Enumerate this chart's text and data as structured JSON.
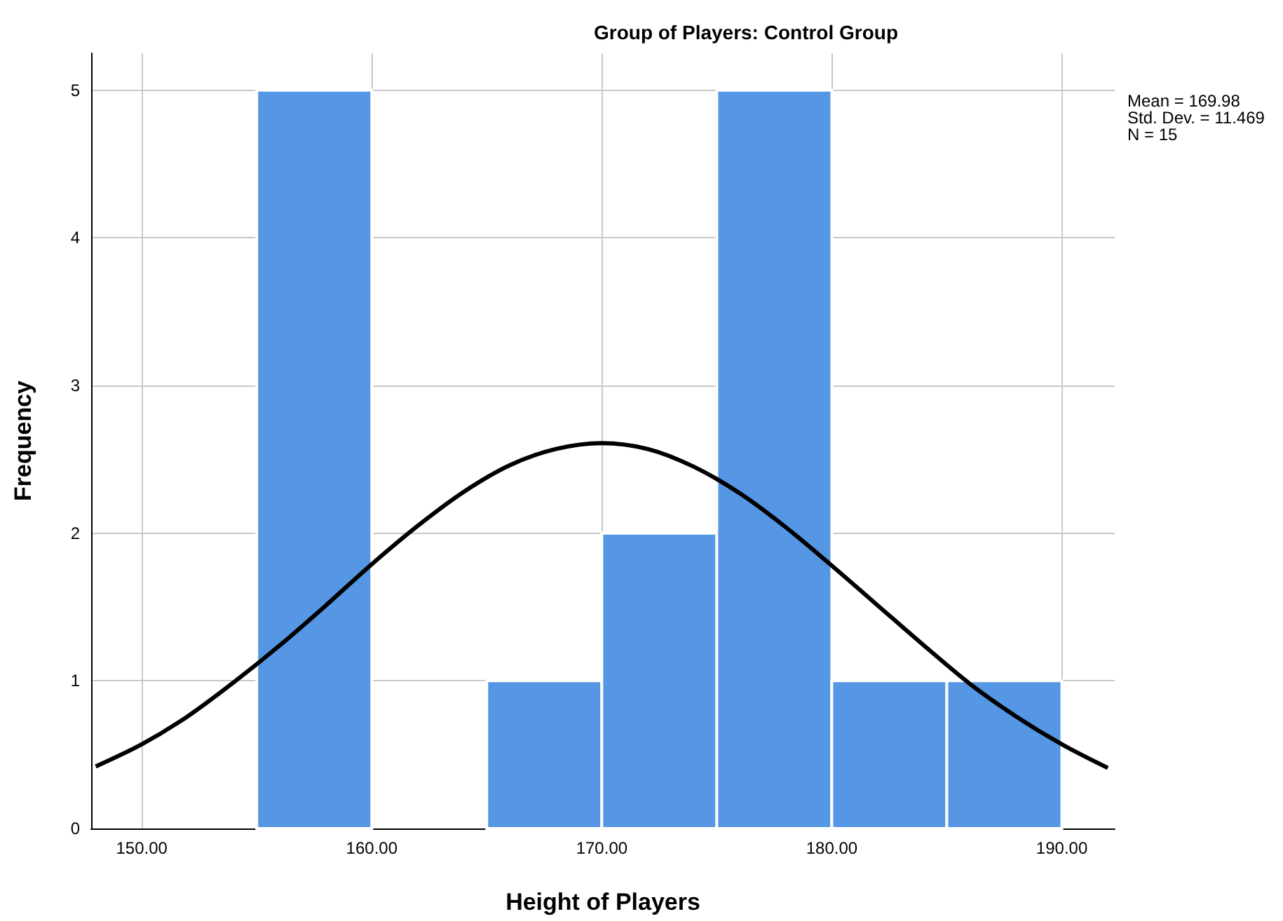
{
  "chart_data": {
    "type": "histogram",
    "title": "Group of Players: Control Group",
    "xlabel": "Height of Players",
    "ylabel": "Frequency",
    "bins": [
      155,
      160,
      165,
      170,
      175,
      180,
      185,
      190
    ],
    "values": [
      5,
      0,
      1,
      2,
      5,
      1,
      1
    ],
    "color": "#5596e5",
    "series": [
      {
        "type": "line",
        "color": "#000000",
        "x": [
          148,
          150,
          152,
          154,
          156,
          158,
          160,
          162,
          164,
          166,
          168,
          170,
          172,
          174,
          176,
          178,
          180,
          182,
          184,
          186,
          188,
          190,
          192
        ],
        "values": [
          0.42,
          0.57,
          0.76,
          0.99,
          1.24,
          1.51,
          1.79,
          2.05,
          2.28,
          2.46,
          2.57,
          2.61,
          2.57,
          2.45,
          2.27,
          2.04,
          1.78,
          1.51,
          1.24,
          0.98,
          0.76,
          0.57,
          0.41
        ]
      }
    ],
    "annotations": [
      "Mean = 169.98",
      "Std. Dev. = 11.469",
      "N = 15"
    ],
    "xlim": [
      147.8,
      192.3
    ],
    "xticks": [
      {
        "value": 150,
        "label": "150.00"
      },
      {
        "value": 160,
        "label": "160.00"
      },
      {
        "value": 170,
        "label": "170.00"
      },
      {
        "value": 180,
        "label": "180.00"
      },
      {
        "value": 190,
        "label": "190.00"
      }
    ],
    "ylim": [
      0,
      5.25
    ],
    "yticks": [
      0,
      1,
      2,
      3,
      4,
      5
    ],
    "grid": true,
    "marker": "none",
    "line_style": "solid"
  }
}
